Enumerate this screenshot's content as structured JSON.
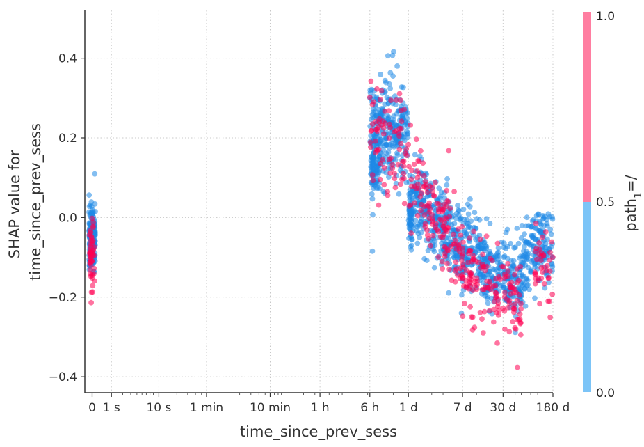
{
  "chart_data": {
    "type": "scatter",
    "title": "",
    "xlabel": "time_since_prev_sess",
    "ylabel_lines": [
      "SHAP value for",
      "time_since_prev_sess"
    ],
    "x_scale": "symlog (time since previous session, in seconds)",
    "xlim_seconds": [
      -0.3,
      15552000
    ],
    "ylim": [
      -0.44,
      0.52
    ],
    "grid": true,
    "x_ticks": [
      {
        "label": "0",
        "seconds": 0
      },
      {
        "label": "1 s",
        "seconds": 1
      },
      {
        "label": "10 s",
        "seconds": 10
      },
      {
        "label": "1 min",
        "seconds": 60
      },
      {
        "label": "10 min",
        "seconds": 600
      },
      {
        "label": "1 h",
        "seconds": 3600
      },
      {
        "label": "6 h",
        "seconds": 21600
      },
      {
        "label": "1 d",
        "seconds": 86400
      },
      {
        "label": "7 d",
        "seconds": 604800
      },
      {
        "label": "30 d",
        "seconds": 2592000
      },
      {
        "label": "180 d",
        "seconds": 15552000
      }
    ],
    "y_ticks": [
      {
        "label": "0.4",
        "value": 0.4
      },
      {
        "label": "0.2",
        "value": 0.2
      },
      {
        "label": "0.0",
        "value": 0.0
      },
      {
        "label": "−0.2",
        "value": -0.2
      },
      {
        "label": "−0.4",
        "value": -0.4
      }
    ],
    "colorbar": {
      "label_main": "path",
      "label_sub": "1",
      "label_suffix": "=/",
      "ticks": [
        {
          "label": "1.0",
          "value": 1.0
        },
        {
          "label": "0.5",
          "value": 0.5
        },
        {
          "label": "0.0",
          "value": 0.0
        }
      ],
      "low_color": "#7cc4f7",
      "high_color": "#ff7ea1"
    },
    "series": [
      {
        "color_value": 0,
        "color": "#1e88e5",
        "clusters": [
          {
            "x_seconds": [
              -0.12,
              0.12
            ],
            "y_mean": -0.05,
            "y_sd": 0.045,
            "n": 170
          },
          {
            "x_seconds": [
              21600,
              30000
            ],
            "y_mean": 0.17,
            "y_sd": 0.065,
            "n": 130
          },
          {
            "x_seconds": [
              30000,
              86400
            ],
            "y_mean": 0.22,
            "y_sd": 0.07,
            "n": 220
          },
          {
            "x_seconds": [
              86400,
              100000
            ],
            "y_mean": 0.01,
            "y_sd": 0.035,
            "n": 70
          },
          {
            "x_seconds": [
              100000,
              600000
            ],
            "y_mean_start": 0.06,
            "y_mean_end": -0.08,
            "y_sd": 0.055,
            "n": 300
          },
          {
            "x_seconds": [
              600000,
              5000000
            ],
            "y_mean_start": -0.08,
            "y_mean_end": -0.18,
            "y_sd": 0.05,
            "n": 330
          },
          {
            "x_seconds": [
              5000000,
              8000000
            ],
            "y_mean_start": -0.14,
            "y_mean_end": -0.06,
            "y_sd": 0.045,
            "n": 70
          },
          {
            "x_seconds": [
              8000000,
              15552000
            ],
            "y_mean": -0.07,
            "y_sd": 0.05,
            "n": 100
          }
        ]
      },
      {
        "color_value": 1,
        "color": "#ff0052",
        "clusters": [
          {
            "x_seconds": [
              -0.1,
              0.1
            ],
            "y_mean": -0.09,
            "y_sd": 0.05,
            "n": 50
          },
          {
            "x_seconds": [
              21600,
              86400
            ],
            "y_mean": 0.2,
            "y_sd": 0.07,
            "n": 80
          },
          {
            "x_seconds": [
              86400,
              600000
            ],
            "y_mean_start": 0.12,
            "y_mean_end": -0.1,
            "y_sd": 0.06,
            "n": 130
          },
          {
            "x_seconds": [
              600000,
              5000000
            ],
            "y_mean_start": -0.12,
            "y_mean_end": -0.22,
            "y_sd": 0.055,
            "n": 150
          },
          {
            "x_seconds": [
              8000000,
              15552000
            ],
            "y_mean": -0.12,
            "y_sd": 0.05,
            "n": 40
          }
        ]
      }
    ]
  }
}
